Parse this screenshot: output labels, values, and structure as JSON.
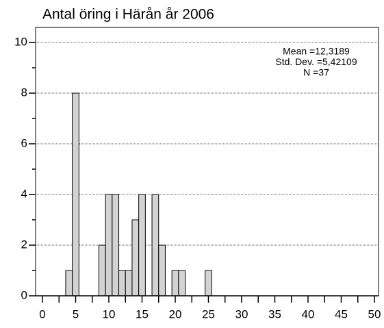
{
  "chart_data": {
    "type": "histogram",
    "title": "Antal öring i Härån år 2006",
    "annotations": [
      "Mean =12,3189",
      "Std. Dev. =5,42109",
      "N =37"
    ],
    "bins": [
      3.5,
      4.5,
      5.5,
      6.5,
      7.5,
      8.5,
      9.5,
      10.5,
      11.5,
      12.5,
      13.5,
      14.5,
      15.5,
      16.5,
      17.5,
      18.5,
      19.5,
      20.5,
      21.5,
      22.5,
      23.5,
      24.5,
      25.5
    ],
    "values": [
      1,
      8,
      0,
      0,
      0,
      2,
      4,
      4,
      1,
      1,
      3,
      4,
      0,
      4,
      2,
      0,
      1,
      1,
      0,
      0,
      0,
      1
    ],
    "color": "#d3d3d3",
    "xlim": [
      0,
      50
    ],
    "xticks": [
      0,
      5,
      10,
      15,
      20,
      25,
      30,
      35,
      40,
      45,
      50
    ],
    "xminorticks": [
      2.5,
      7.5,
      12.5,
      17.5,
      22.5,
      27.5,
      32.5,
      37.5,
      42.5,
      47.5
    ],
    "ylim": [
      0,
      10
    ],
    "yticks": [
      0,
      2,
      4,
      6,
      8,
      10
    ],
    "yminorticks": [
      1,
      3,
      5,
      7,
      9
    ],
    "grid": true
  }
}
